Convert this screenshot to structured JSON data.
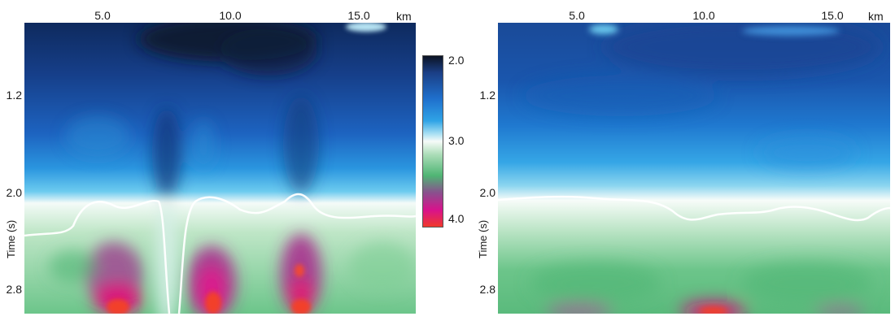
{
  "x_unit": "km",
  "y_label": "Time (s)",
  "x_ticks": [
    "5.0",
    "10.0",
    "15.0"
  ],
  "y_ticks": [
    "1.2",
    "2.0",
    "2.8"
  ],
  "colorbar": {
    "labels": [
      "2.0",
      "3.0",
      "4.0"
    ],
    "colors": [
      "#0b1220",
      "#1b3f86",
      "#1f6fcc",
      "#2fa3e6",
      "#9fdcf2",
      "#f6fbf8",
      "#a9dcb6",
      "#4fb574",
      "#8a4f8e",
      "#d8128c",
      "#f03a2a"
    ]
  },
  "panels": [
    {
      "name": "left"
    },
    {
      "name": "right"
    }
  ]
}
